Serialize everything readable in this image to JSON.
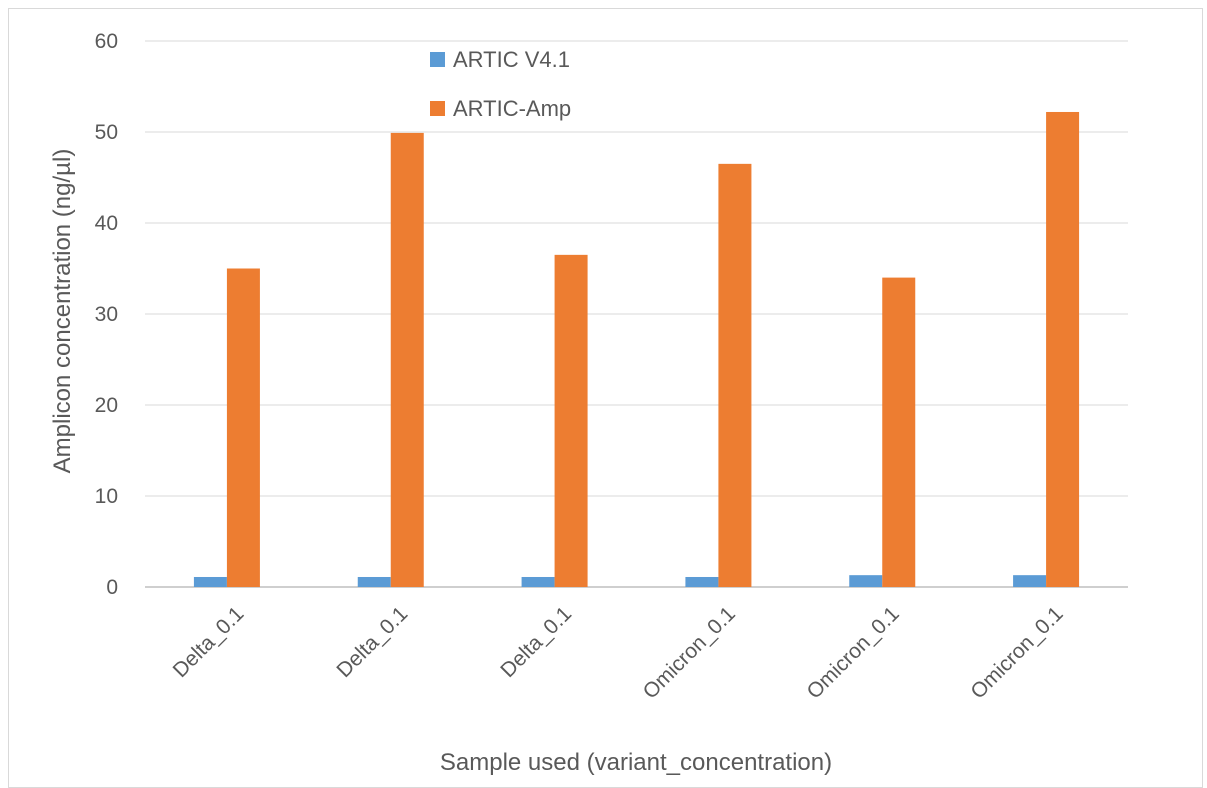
{
  "chart_data": {
    "type": "bar",
    "categories": [
      "Delta_0.1",
      "Delta_0.1",
      "Delta_0.1",
      "Omicron_0.1",
      "Omicron_0.1",
      "Omicron_0.1"
    ],
    "series": [
      {
        "name": "ARTIC V4.1",
        "values": [
          1.1,
          1.1,
          1.1,
          1.1,
          1.3,
          1.3
        ],
        "color": "#5B9BD5"
      },
      {
        "name": "ARTIC-Amp",
        "values": [
          35.0,
          49.9,
          36.5,
          46.5,
          34.0,
          52.2
        ],
        "color": "#ED7D31"
      }
    ],
    "title": "",
    "xlabel": "Sample used (variant_concentration)",
    "ylabel": "Amplicon concentration (ng/µl)",
    "ylim": [
      0,
      60
    ],
    "yticks": [
      0,
      10,
      20,
      30,
      40,
      50,
      60
    ],
    "grid": true,
    "legend_position": "top-center"
  }
}
